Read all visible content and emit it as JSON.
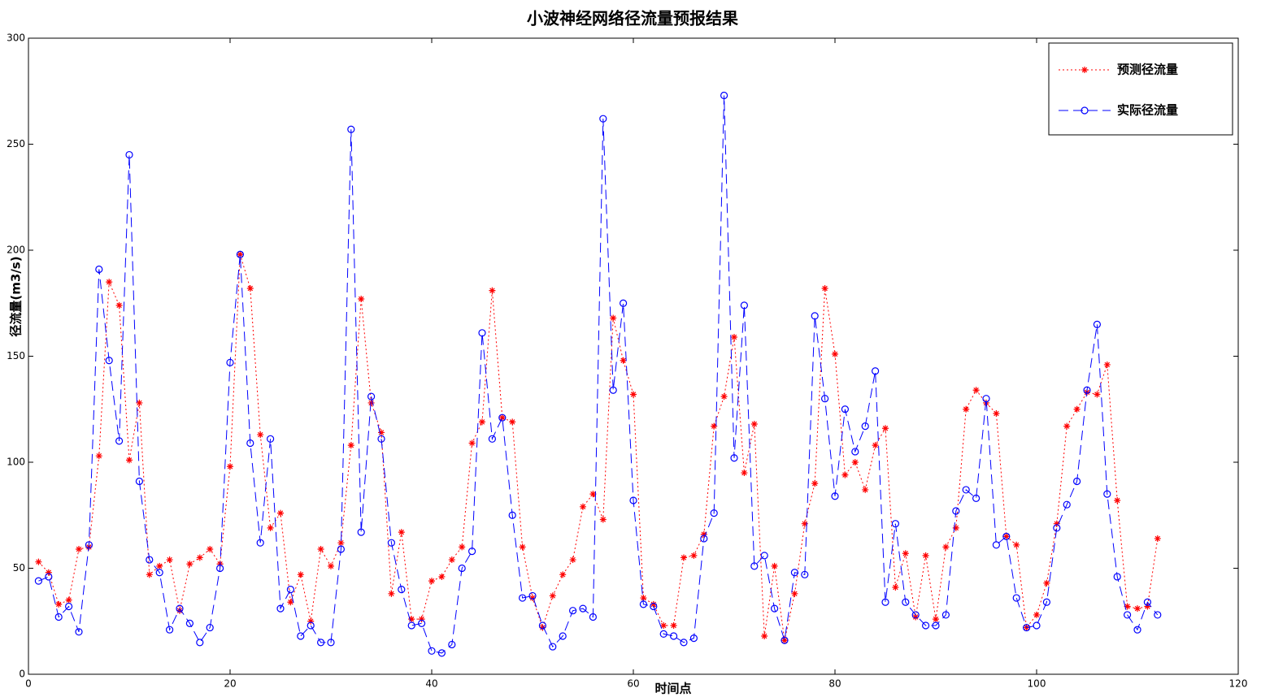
{
  "chart_data": {
    "type": "line",
    "title": "小波神经网络径流量预报结果",
    "x_label": "时间点",
    "y_label": "径流量(m3/s)",
    "x": [
      1,
      2,
      3,
      4,
      5,
      6,
      7,
      8,
      9,
      10,
      11,
      12,
      13,
      14,
      15,
      16,
      17,
      18,
      19,
      20,
      21,
      22,
      23,
      24,
      25,
      26,
      27,
      28,
      29,
      30,
      31,
      32,
      33,
      34,
      35,
      36,
      37,
      38,
      39,
      40,
      41,
      42,
      43,
      44,
      45,
      46,
      47,
      48,
      49,
      50,
      51,
      52,
      53,
      54,
      55,
      56,
      57,
      58,
      59,
      60,
      61,
      62,
      63,
      64,
      65,
      66,
      67,
      68,
      69,
      70,
      71,
      72,
      73,
      74,
      75,
      76,
      77,
      78,
      79,
      80,
      81,
      82,
      83,
      84,
      85,
      86,
      87,
      88,
      89,
      90,
      91,
      92,
      93,
      94,
      95,
      96,
      97,
      98,
      99,
      100,
      101,
      102,
      103,
      104,
      105,
      106,
      107,
      108,
      109,
      110,
      111,
      112
    ],
    "series": [
      {
        "name": "预测径流量",
        "color": "#ff0000",
        "line_style": "dotted",
        "marker": "star",
        "values": [
          53,
          48,
          33,
          35,
          59,
          60,
          103,
          185,
          174,
          101,
          128,
          47,
          51,
          54,
          30,
          52,
          55,
          59,
          52,
          98,
          198,
          182,
          113,
          69,
          76,
          34,
          47,
          25,
          59,
          51,
          62,
          108,
          177,
          128,
          114,
          38,
          67,
          26,
          26,
          44,
          46,
          54,
          60,
          109,
          119,
          181,
          121,
          119,
          60,
          36,
          22,
          37,
          47,
          54,
          79,
          85,
          73,
          168,
          148,
          132,
          36,
          33,
          23,
          23,
          55,
          56,
          66,
          117,
          131,
          159,
          95,
          118,
          18,
          51,
          16,
          38,
          71,
          90,
          182,
          151,
          94,
          100,
          87,
          108,
          116,
          41,
          57,
          27,
          56,
          26,
          60,
          69,
          125,
          134,
          128,
          123,
          65,
          61,
          22,
          28,
          43,
          71,
          117,
          125,
          133,
          132,
          146,
          82,
          32,
          31,
          32,
          64
        ]
      },
      {
        "name": "实际径流量",
        "color": "#0000ff",
        "line_style": "dashed",
        "marker": "circle",
        "values": [
          44,
          46,
          27,
          32,
          20,
          61,
          191,
          148,
          110,
          245,
          91,
          54,
          48,
          21,
          31,
          24,
          15,
          22,
          50,
          147,
          198,
          109,
          62,
          111,
          31,
          40,
          18,
          23,
          15,
          15,
          59,
          257,
          67,
          131,
          111,
          62,
          40,
          23,
          24,
          11,
          10,
          14,
          50,
          58,
          161,
          111,
          121,
          75,
          36,
          37,
          23,
          13,
          18,
          30,
          31,
          27,
          262,
          134,
          175,
          82,
          33,
          32,
          19,
          18,
          15,
          17,
          64,
          76,
          273,
          102,
          174,
          51,
          56,
          31,
          16,
          48,
          47,
          169,
          130,
          84,
          125,
          105,
          117,
          143,
          34,
          71,
          34,
          28,
          23,
          23,
          28,
          77,
          87,
          83,
          130,
          61,
          65,
          36,
          22,
          23,
          34,
          69,
          80,
          91,
          134,
          165,
          85,
          46,
          28,
          21,
          34,
          28
        ]
      }
    ],
    "xlim": [
      0,
      120
    ],
    "xticks": [
      0,
      20,
      40,
      60,
      80,
      100,
      120
    ],
    "ylim": [
      0,
      300
    ],
    "yticks": [
      0,
      50,
      100,
      150,
      200,
      250,
      300
    ],
    "grid": false,
    "legend": "upper right"
  }
}
